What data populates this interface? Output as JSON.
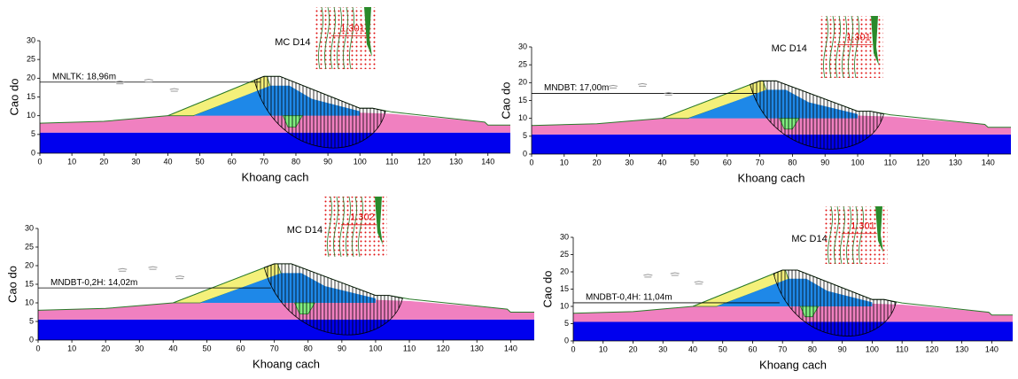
{
  "chart_data": [
    {
      "type": "cross-section",
      "title": "MC D14",
      "xlabel": "Khoang cach",
      "ylabel": "Cao do",
      "xlim": [
        0,
        147
      ],
      "ylim": [
        0,
        30
      ],
      "xticks": [
        0,
        10,
        20,
        30,
        40,
        50,
        60,
        70,
        80,
        90,
        100,
        110,
        120,
        130,
        140
      ],
      "yticks": [
        0,
        5,
        10,
        15,
        20,
        25,
        30
      ],
      "water_label": "MNLTK: 18,96m",
      "water_level": 18.96,
      "safety_factor": 1.301
    },
    {
      "type": "cross-section",
      "title": "MC D14",
      "xlabel": "Khoang cach",
      "ylabel": "Cao do",
      "xlim": [
        0,
        147
      ],
      "ylim": [
        0,
        30
      ],
      "xticks": [
        0,
        10,
        20,
        30,
        40,
        50,
        60,
        70,
        80,
        90,
        100,
        110,
        120,
        130,
        140
      ],
      "yticks": [
        0,
        5,
        10,
        15,
        20,
        25,
        30
      ],
      "water_label": "MNDBT: 17,00m",
      "water_level": 17.0,
      "safety_factor": 1.301
    },
    {
      "type": "cross-section",
      "title": "MC D14",
      "xlabel": "Khoang cach",
      "ylabel": "Cao do",
      "xlim": [
        0,
        147
      ],
      "ylim": [
        0,
        30
      ],
      "xticks": [
        0,
        10,
        20,
        30,
        40,
        50,
        60,
        70,
        80,
        90,
        100,
        110,
        120,
        130,
        140
      ],
      "yticks": [
        0,
        5,
        10,
        15,
        20,
        25,
        30
      ],
      "water_label": "MNDBT-0,2H: 14,02m",
      "water_level": 14.02,
      "safety_factor": 1.302
    },
    {
      "type": "cross-section",
      "title": "MC D14",
      "xlabel": "Khoang cach",
      "ylabel": "Cao do",
      "xlim": [
        0,
        147
      ],
      "ylim": [
        0,
        30
      ],
      "xticks": [
        0,
        10,
        20,
        30,
        40,
        50,
        60,
        70,
        80,
        90,
        100,
        110,
        120,
        130,
        140
      ],
      "yticks": [
        0,
        5,
        10,
        15,
        20,
        25,
        30
      ],
      "water_label": "MNDBT-0,4H: 11,04m",
      "water_level": 11.04,
      "safety_factor": 1.301
    }
  ]
}
